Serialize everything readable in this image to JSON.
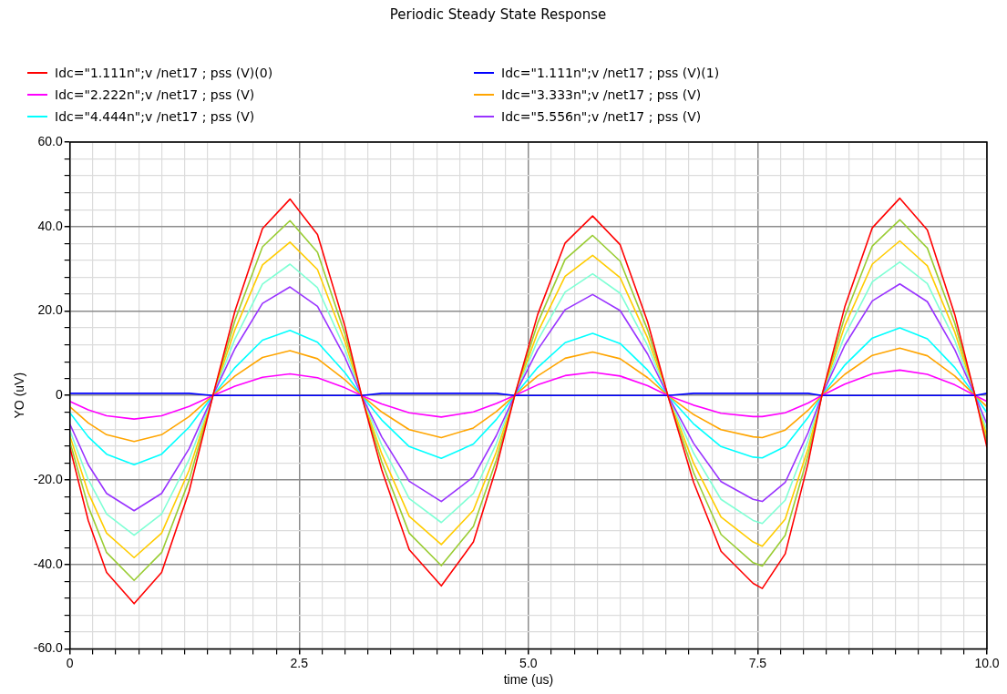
{
  "chart_data": {
    "type": "line",
    "title": "Periodic Steady State Response",
    "xlabel": "time (us)",
    "ylabel": "YO (uV)",
    "legend": "top",
    "grid": true,
    "marker": "none",
    "line_style": "solid",
    "xlim": [
      0,
      10
    ],
    "ylim": [
      -60,
      60
    ],
    "xticks": [
      0,
      {
        "value": 0.25,
        "label": null
      },
      {
        "value": 0.5,
        "label": null
      },
      {
        "value": 0.75,
        "label": null
      },
      {
        "value": 1,
        "label": null
      },
      {
        "value": 1.25,
        "label": null
      },
      {
        "value": 1.5,
        "label": null
      },
      {
        "value": 1.75,
        "label": null
      },
      {
        "value": 2,
        "label": null
      },
      {
        "value": 2.25,
        "label": null
      },
      2.5,
      {
        "value": 2.75,
        "label": null
      },
      {
        "value": 3,
        "label": null
      },
      {
        "value": 3.25,
        "label": null
      },
      {
        "value": 3.5,
        "label": null
      },
      {
        "value": 3.75,
        "label": null
      },
      {
        "value": 4,
        "label": null
      },
      {
        "value": 4.25,
        "label": null
      },
      {
        "value": 4.5,
        "label": null
      },
      {
        "value": 4.75,
        "label": null
      },
      {
        "value": 5,
        "label": "5.0"
      },
      {
        "value": 5.25,
        "label": null
      },
      {
        "value": 5.5,
        "label": null
      },
      {
        "value": 5.75,
        "label": null
      },
      {
        "value": 6,
        "label": null
      },
      {
        "value": 6.25,
        "label": null
      },
      {
        "value": 6.5,
        "label": null
      },
      {
        "value": 6.75,
        "label": null
      },
      {
        "value": 7,
        "label": null
      },
      {
        "value": 7.25,
        "label": null
      },
      7.5,
      {
        "value": 7.75,
        "label": null
      },
      {
        "value": 8,
        "label": null
      },
      {
        "value": 8.25,
        "label": null
      },
      {
        "value": 8.5,
        "label": null
      },
      {
        "value": 8.75,
        "label": null
      },
      {
        "value": 9,
        "label": null
      },
      {
        "value": 9.25,
        "label": null
      },
      {
        "value": 9.5,
        "label": null
      },
      {
        "value": 9.75,
        "label": null
      },
      {
        "value": 10,
        "label": "10.0"
      }
    ],
    "yticks": [
      {
        "value": -60,
        "label": "-60.0"
      },
      {
        "value": -56,
        "label": null
      },
      {
        "value": -52,
        "label": null
      },
      {
        "value": -48,
        "label": null
      },
      {
        "value": -44,
        "label": null
      },
      {
        "value": -40,
        "label": "-40.0"
      },
      {
        "value": -36,
        "label": null
      },
      {
        "value": -32,
        "label": null
      },
      {
        "value": -28,
        "label": null
      },
      {
        "value": -24,
        "label": null
      },
      {
        "value": -20,
        "label": "-20.0"
      },
      {
        "value": -16,
        "label": null
      },
      {
        "value": -12,
        "label": null
      },
      {
        "value": -8,
        "label": null
      },
      {
        "value": -4,
        "label": null
      },
      0,
      {
        "value": 4,
        "label": null
      },
      {
        "value": 8,
        "label": null
      },
      {
        "value": 12,
        "label": null
      },
      {
        "value": 16,
        "label": null
      },
      {
        "value": 20,
        "label": "20.0"
      },
      {
        "value": 24,
        "label": null
      },
      {
        "value": 28,
        "label": null
      },
      {
        "value": 32,
        "label": null
      },
      {
        "value": 36,
        "label": null
      },
      {
        "value": 40,
        "label": "40.0"
      },
      {
        "value": 44,
        "label": null
      },
      {
        "value": 48,
        "label": null
      },
      {
        "value": 52,
        "label": null
      },
      {
        "value": 56,
        "label": null
      },
      {
        "value": 60,
        "label": "60.0"
      }
    ],
    "x": [
      0,
      0.2,
      0.4,
      0.7,
      1.0,
      1.3,
      1.56,
      1.8,
      2.1,
      2.4,
      2.7,
      3.0,
      3.18,
      3.4,
      3.7,
      4.05,
      4.4,
      4.65,
      4.85,
      5.1,
      5.4,
      5.7,
      6.0,
      6.3,
      6.52,
      6.8,
      7.1,
      7.45,
      7.55,
      7.8,
      8.05,
      8.2,
      8.45,
      8.75,
      9.05,
      9.35,
      9.65,
      9.87,
      10
    ],
    "series": [
      {
        "name": "Idc=\"1.111n\";v /net17 ; pss (V)(0)",
        "color": "#ff0000",
        "values": [
          -12.3,
          -29.6,
          -41.9,
          -49.3,
          -41.9,
          -22.7,
          0,
          20.0,
          39.5,
          46.5,
          38.1,
          16.3,
          0,
          -17.6,
          -36.5,
          -45.1,
          -34.7,
          -17.1,
          0,
          19.1,
          36.1,
          42.5,
          35.7,
          17.4,
          0,
          -20.5,
          -36.9,
          -44.5,
          -45.7,
          -37.5,
          -16.0,
          0,
          21.0,
          39.7,
          46.7,
          39.2,
          19.1,
          0,
          -12.3
        ]
      },
      {
        "name": "Idc=\"1.111n\";v /net17 ; pss (V)(1)",
        "color": "#0000ff",
        "values": [
          0.5,
          0.5,
          0.5,
          0.5,
          0.5,
          0.5,
          0,
          0,
          0,
          0,
          0,
          0,
          0,
          0.5,
          0.5,
          0.5,
          0.5,
          0.5,
          0,
          0,
          0,
          0,
          0,
          0,
          0,
          0.5,
          0.5,
          0.5,
          0.5,
          0.5,
          0.5,
          0,
          0,
          0,
          0,
          0,
          0,
          0,
          0.5
        ]
      },
      {
        "name": "Idc=\"2.222n\";v /net17 ; pss (V)",
        "color": "#ff00ff",
        "values": [
          -1.4,
          -3.4,
          -4.8,
          -5.6,
          -4.8,
          -2.6,
          0,
          2.2,
          4.3,
          5.1,
          4.2,
          1.8,
          0,
          -2.0,
          -4.1,
          -5.1,
          -3.9,
          -1.9,
          0,
          2.5,
          4.7,
          5.5,
          4.6,
          2.3,
          0,
          -2.3,
          -4.2,
          -5.0,
          -5.0,
          -4.1,
          -1.8,
          0,
          2.7,
          5.1,
          6.0,
          5.0,
          2.5,
          0,
          -1.4
        ]
      },
      {
        "name": "Idc=\"3.333n\";v /net17 ; pss (V)",
        "color": "#ffa500",
        "values": [
          -2.7,
          -6.5,
          -9.3,
          -10.9,
          -9.3,
          -5.0,
          0,
          4.6,
          9.0,
          10.6,
          8.7,
          3.7,
          0,
          -3.9,
          -8.1,
          -10.0,
          -7.7,
          -3.8,
          0,
          4.6,
          8.8,
          10.3,
          8.7,
          4.2,
          0,
          -4.5,
          -8.1,
          -9.8,
          -10.0,
          -8.2,
          -3.5,
          0,
          5.0,
          9.5,
          11.2,
          9.4,
          4.6,
          0,
          -2.7
        ]
      },
      {
        "name": "Idc=\"4.444n\";v /net17 ; pss (V)",
        "color": "#00ffff",
        "values": [
          -4.1,
          -9.8,
          -13.9,
          -16.4,
          -13.9,
          -7.5,
          0,
          6.6,
          13.1,
          15.4,
          12.6,
          5.4,
          0,
          -5.8,
          -12.1,
          -14.9,
          -11.5,
          -5.7,
          0,
          6.6,
          12.5,
          14.7,
          12.3,
          6.0,
          0,
          -6.7,
          -12.1,
          -14.6,
          -14.8,
          -12.1,
          -5.2,
          0,
          7.2,
          13.6,
          16.0,
          13.4,
          6.6,
          0,
          -4.1
        ]
      },
      {
        "name": "Idc=\"5.556n\";v /net17 ; pss (V)",
        "color": "#9933ff",
        "values": [
          -6.8,
          -16.4,
          -23.2,
          -27.3,
          -23.2,
          -12.6,
          0,
          11.1,
          21.8,
          25.7,
          21.1,
          9.0,
          0,
          -9.8,
          -20.3,
          -25.1,
          -19.3,
          -9.5,
          0,
          10.8,
          20.3,
          23.9,
          20.1,
          9.8,
          0,
          -11.3,
          -20.4,
          -24.6,
          -25.1,
          -20.6,
          -8.8,
          0,
          11.9,
          22.4,
          26.4,
          22.2,
          10.8,
          0,
          -6.8
        ]
      },
      {
        "color": "#7fffd4",
        "values": [
          -8.3,
          -19.9,
          -28.1,
          -33.1,
          -28.1,
          -15.2,
          0,
          13.4,
          26.4,
          31.1,
          25.5,
          10.9,
          0,
          -11.7,
          -24.4,
          -30.1,
          -23.2,
          -11.4,
          0,
          13.0,
          24.5,
          28.8,
          24.2,
          11.8,
          0,
          -13.6,
          -24.6,
          -29.6,
          -30.3,
          -24.8,
          -10.6,
          0,
          14.2,
          26.9,
          31.6,
          26.5,
          13.0,
          0,
          -8.3
        ]
      },
      {
        "color": "#ffcc00",
        "values": [
          -9.6,
          -23.0,
          -32.6,
          -38.4,
          -32.6,
          -17.7,
          0,
          15.6,
          30.9,
          36.3,
          29.8,
          12.7,
          0,
          -13.8,
          -28.6,
          -35.3,
          -27.2,
          -13.4,
          0,
          14.9,
          28.2,
          33.2,
          27.9,
          13.6,
          0,
          -16.0,
          -28.8,
          -34.7,
          -35.7,
          -29.3,
          -12.5,
          0,
          16.5,
          31.1,
          36.6,
          30.7,
          15.0,
          0,
          -9.6
        ]
      },
      {
        "color": "#99cc33",
        "values": [
          -11.0,
          -26.3,
          -37.2,
          -43.8,
          -37.2,
          -20.1,
          0,
          17.8,
          35.2,
          41.4,
          33.9,
          14.5,
          0,
          -15.7,
          -32.6,
          -40.3,
          -31.0,
          -15.3,
          0,
          17.1,
          32.2,
          37.9,
          31.8,
          15.5,
          0,
          -18.2,
          -32.9,
          -39.6,
          -40.4,
          -33.1,
          -14.1,
          0,
          18.7,
          35.4,
          41.6,
          34.9,
          17.1,
          0,
          -11.0
        ]
      }
    ]
  }
}
